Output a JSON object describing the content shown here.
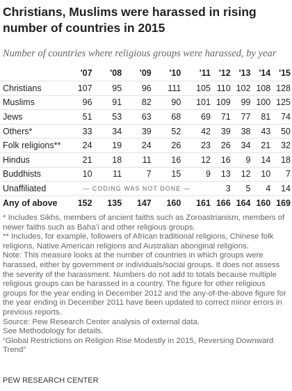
{
  "header": {
    "title": "Christians, Muslims were harassed in rising number of countries in 2015",
    "subtitle": "Number of countries where religious groups were harassed, by year"
  },
  "table": {
    "columns": [
      "'07",
      "'08",
      "'09",
      "'10",
      "'11",
      "'12",
      "'13",
      "'14",
      "'15"
    ],
    "rows": [
      {
        "label": "Christians",
        "values": [
          107,
          95,
          96,
          111,
          105,
          110,
          102,
          108,
          128
        ]
      },
      {
        "label": "Muslims",
        "values": [
          96,
          91,
          82,
          90,
          101,
          109,
          99,
          100,
          125
        ]
      },
      {
        "label": "Jews",
        "values": [
          51,
          53,
          63,
          68,
          69,
          71,
          77,
          81,
          74
        ]
      },
      {
        "label": "Others*",
        "values": [
          33,
          34,
          39,
          52,
          42,
          39,
          38,
          43,
          50
        ]
      },
      {
        "label": "Folk religions**",
        "values": [
          24,
          19,
          24,
          26,
          23,
          26,
          34,
          21,
          32
        ]
      },
      {
        "label": "Hindus",
        "values": [
          21,
          18,
          11,
          16,
          12,
          16,
          9,
          14,
          18
        ]
      },
      {
        "label": "Buddhists",
        "values": [
          10,
          11,
          7,
          15,
          9,
          13,
          12,
          10,
          7
        ]
      },
      {
        "label": "Unaffiliated",
        "note": "— CODING WAS NOT DONE —",
        "values": [
          3,
          5,
          4,
          14
        ]
      },
      {
        "label": "Any of above",
        "values": [
          152,
          135,
          147,
          160,
          161,
          166,
          164,
          160,
          169
        ]
      }
    ]
  },
  "footnotes": [
    "* Includes Sikhs, members of ancient faiths such as Zoroastrianism, members of newer faiths such as Baha’i and other religious groups.",
    "** Includes, for example, followers of African traditional religions, Chinese folk religions, Native American religions and Australian aboriginal religions.",
    "Note: This measure looks at the number of countries in which groups were harassed, either by government or individuals/social groups. It does not assess the severity of the harassment. Numbers do not add to totals because multiple religious groups can be harassed in a country. The figure for other religious groups for the year ending in December 2012 and the any-of-the-above figure for the year ending in December 2011 have been updated to correct minor errors in previous reports.",
    "Source: Pew Research Center analysis of external data.",
    "See Methodology for details.",
    "“Global Restrictions on Religion Rise Modestly in 2015, Reversing Downward Trend”"
  ],
  "footer": "PEW RESEARCH CENTER"
}
